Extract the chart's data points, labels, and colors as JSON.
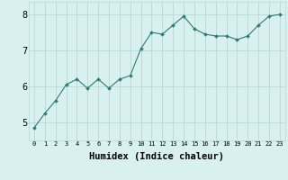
{
  "x": [
    0,
    1,
    2,
    3,
    4,
    5,
    6,
    7,
    8,
    9,
    10,
    11,
    12,
    13,
    14,
    15,
    16,
    17,
    18,
    19,
    20,
    21,
    22,
    23
  ],
  "y": [
    4.85,
    5.25,
    5.6,
    6.05,
    6.2,
    5.95,
    6.2,
    5.95,
    6.2,
    6.3,
    7.05,
    7.5,
    7.45,
    7.7,
    7.95,
    7.6,
    7.45,
    7.4,
    7.4,
    7.3,
    7.4,
    7.7,
    7.95,
    8.0
  ],
  "line_color": "#2d7d6e",
  "marker": "D",
  "marker_size": 2.0,
  "bg_color": "#d8f0ef",
  "grid_color": "#b8d8d4",
  "xlabel": "Humidex (Indice chaleur)",
  "yticks": [
    5,
    6,
    7,
    8
  ],
  "xticks": [
    0,
    1,
    2,
    3,
    4,
    5,
    6,
    7,
    8,
    9,
    10,
    11,
    12,
    13,
    14,
    15,
    16,
    17,
    18,
    19,
    20,
    21,
    22,
    23
  ],
  "ylim": [
    4.5,
    8.35
  ],
  "xlim": [
    -0.5,
    23.5
  ],
  "xlabel_fontsize": 7.5,
  "ytick_fontsize": 7.0,
  "xtick_fontsize": 5.0
}
